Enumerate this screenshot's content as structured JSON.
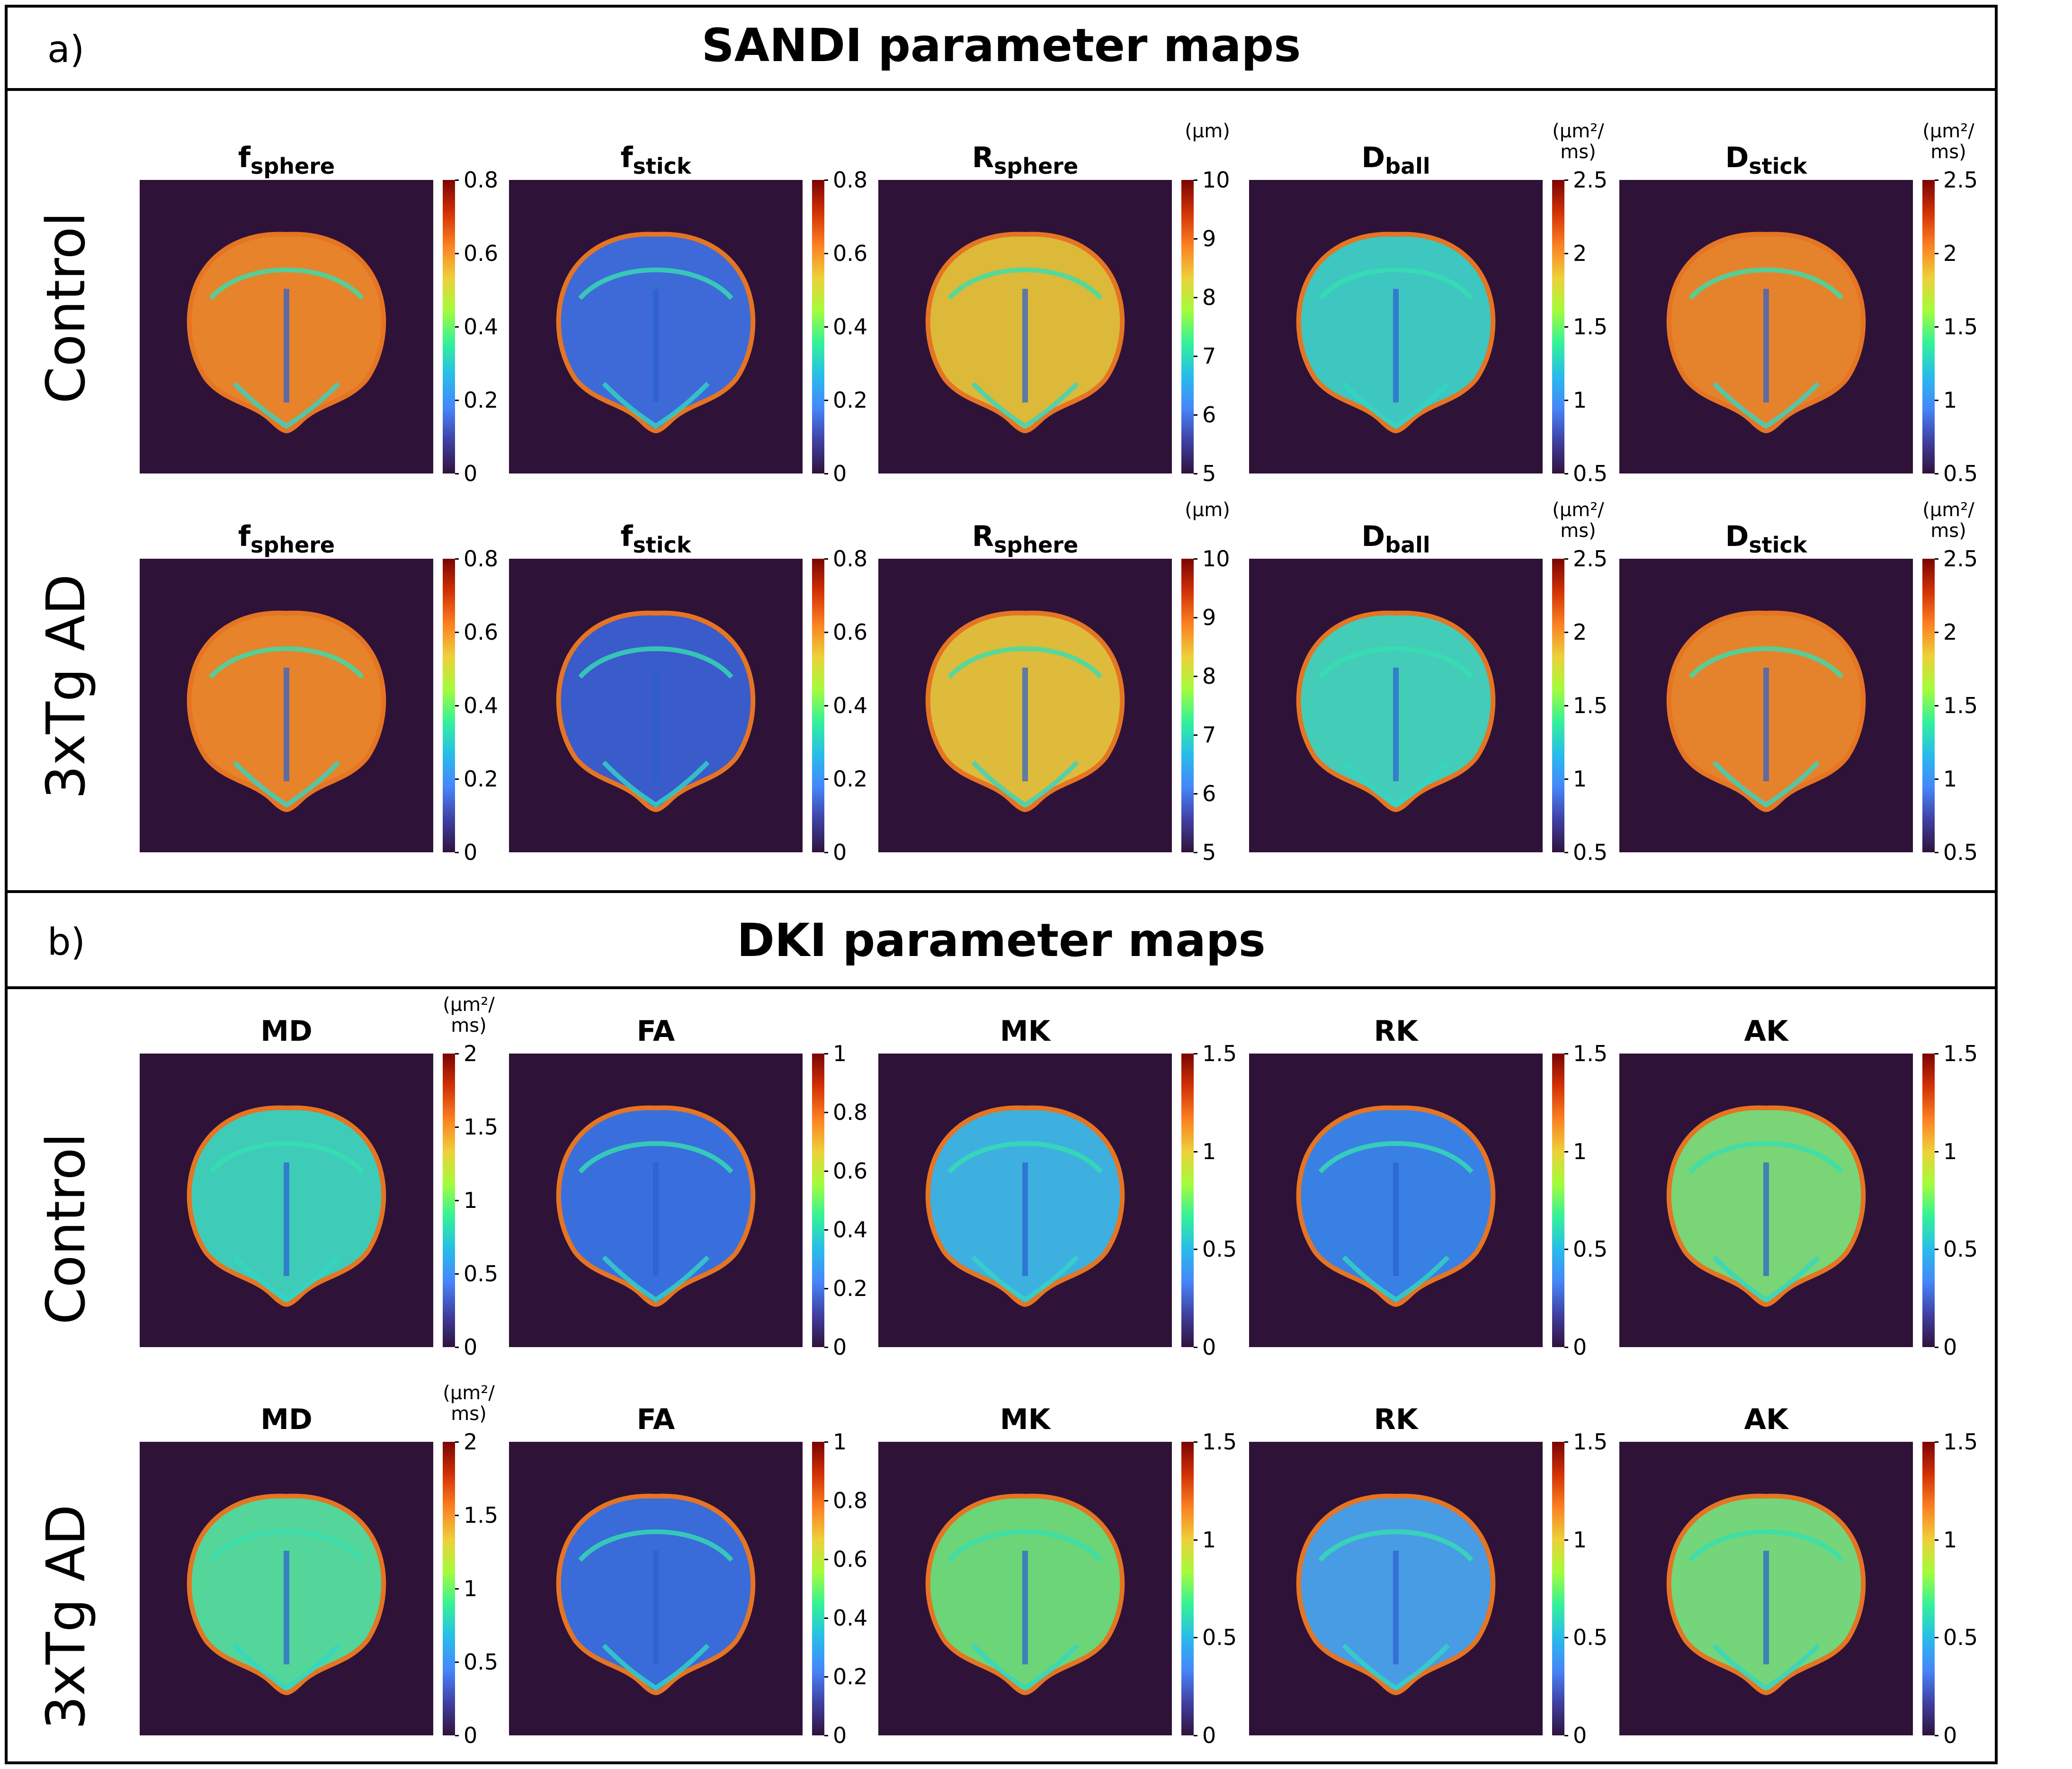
{
  "sections": [
    {
      "letter": "a)",
      "title": "SANDI parameter maps",
      "row_labels": [
        "Control",
        "3xTg AD"
      ],
      "panels": [
        {
          "base": "f",
          "sub": "sphere",
          "unit": "",
          "ticks": [
            "0.8",
            "0.6",
            "0.4",
            "0.2",
            "0"
          ]
        },
        {
          "base": "f",
          "sub": "stick",
          "unit": "",
          "ticks": [
            "0.8",
            "0.6",
            "0.4",
            "0.2",
            "0"
          ]
        },
        {
          "base": "R",
          "sub": "sphere",
          "unit": "(μm)",
          "ticks": [
            "10",
            "9",
            "8",
            "7",
            "6",
            "5"
          ]
        },
        {
          "base": "D",
          "sub": "ball",
          "unit": "(μm²/ ms)",
          "ticks": [
            "2.5",
            "2",
            "1.5",
            "1",
            "0.5"
          ]
        },
        {
          "base": "D",
          "sub": "stick",
          "unit": "(μm²/ ms)",
          "ticks": [
            "2.5",
            "2",
            "1.5",
            "1",
            "0.5"
          ]
        }
      ]
    },
    {
      "letter": "b)",
      "title": "DKI parameter maps",
      "row_labels": [
        "Control",
        "3xTg AD"
      ],
      "panels": [
        {
          "base": "MD",
          "sub": "",
          "unit": "(μm²/ ms)",
          "ticks": [
            "2",
            "1.5",
            "1",
            "0.5",
            "0"
          ]
        },
        {
          "base": "FA",
          "sub": "",
          "unit": "",
          "ticks": [
            "1",
            "0.8",
            "0.6",
            "0.4",
            "0.2",
            "0"
          ]
        },
        {
          "base": "MK",
          "sub": "",
          "unit": "",
          "ticks": [
            "1.5",
            "1",
            "0.5",
            "0"
          ]
        },
        {
          "base": "RK",
          "sub": "",
          "unit": "",
          "ticks": [
            "1.5",
            "1",
            "0.5",
            "0"
          ]
        },
        {
          "base": "AK",
          "sub": "",
          "unit": "",
          "ticks": [
            "1.5",
            "1",
            "0.5",
            "0"
          ]
        }
      ]
    }
  ],
  "colors": {
    "background_map": "#2f1237",
    "colormap": [
      "#30123b",
      "#4686fa",
      "#28bceb",
      "#32f298",
      "#a4fc3b",
      "#edd03a",
      "#fb8022",
      "#d23105",
      "#7a0403"
    ],
    "map_fill": [
      [
        "#f08a2b",
        "#3f6fe0",
        "#e6c23a",
        "#3fd0c8",
        "#ef8a2c"
      ],
      [
        "#f08a2b",
        "#3b5fd2",
        "#e8c53c",
        "#45d8c0",
        "#ef8a2c"
      ],
      [
        "#3fd6c0",
        "#3a74e6",
        "#3fb9e8",
        "#3a86ee",
        "#7ee07a"
      ],
      [
        "#56e0a0",
        "#3a70e2",
        "#6fe07c",
        "#4aa4ee",
        "#78e07e"
      ]
    ]
  }
}
